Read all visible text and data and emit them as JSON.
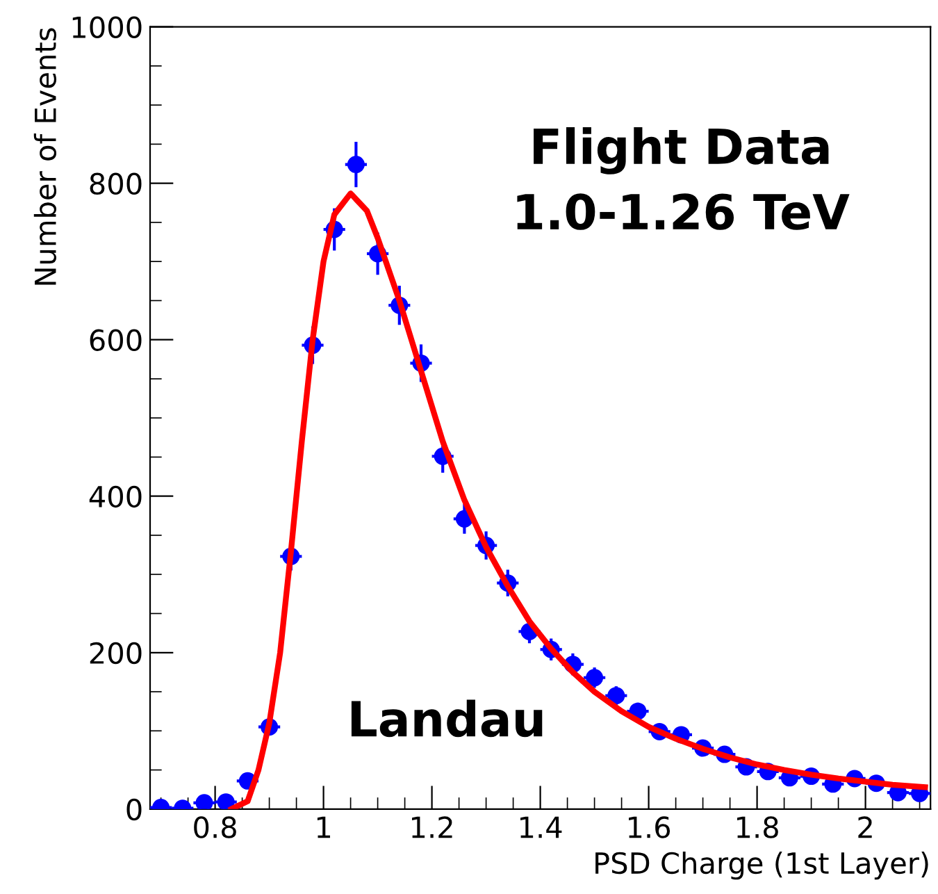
{
  "chart_data": {
    "type": "scatter",
    "xlabel": "PSD Charge (1st Layer)",
    "ylabel": "Number of Events",
    "xlim": [
      0.68,
      2.12
    ],
    "ylim": [
      0,
      1000
    ],
    "xticks": [
      0.8,
      1,
      1.2,
      1.4,
      1.6,
      1.8,
      2
    ],
    "yticks": [
      0,
      200,
      400,
      600,
      800,
      1000
    ],
    "grid": false,
    "legend": false,
    "marker": "circle",
    "annotations": [
      "Flight Data\n1.0-1.26 TeV",
      "Landau"
    ],
    "series": [
      {
        "color": "#0000ff",
        "x": [
          0.7,
          0.74,
          0.78,
          0.82,
          0.86,
          0.9,
          0.94,
          0.98,
          1.02,
          1.06,
          1.1,
          1.14,
          1.18,
          1.22,
          1.26,
          1.3,
          1.34,
          1.38,
          1.42,
          1.46,
          1.5,
          1.54,
          1.58,
          1.62,
          1.66,
          1.7,
          1.74,
          1.78,
          1.82,
          1.86,
          1.9,
          1.94,
          1.98,
          2.02,
          2.06,
          2.1
        ],
        "values": [
          2,
          1,
          8,
          9,
          36,
          105,
          323,
          593,
          741,
          824,
          710,
          644,
          570,
          451,
          371,
          337,
          289,
          227,
          204,
          185,
          168,
          145,
          125,
          99,
          95,
          78,
          70,
          54,
          48,
          40,
          42,
          32,
          39,
          33,
          21,
          20
        ],
        "errors": [
          1,
          1,
          3,
          3,
          6,
          10,
          18,
          24,
          27,
          29,
          27,
          25,
          24,
          21,
          19,
          18,
          17,
          15,
          14,
          14,
          13,
          12,
          11,
          10,
          10,
          9,
          8,
          7,
          7,
          6,
          6,
          6,
          6,
          6,
          5,
          4
        ],
        "xerrors": [
          0.02,
          0.02,
          0.02,
          0.02,
          0.02,
          0.02,
          0.02,
          0.02,
          0.02,
          0.02,
          0.02,
          0.02,
          0.02,
          0.02,
          0.02,
          0.02,
          0.02,
          0.02,
          0.02,
          0.02,
          0.02,
          0.02,
          0.02,
          0.02,
          0.02,
          0.02,
          0.02,
          0.02,
          0.02,
          0.02,
          0.02,
          0.02,
          0.02,
          0.02,
          0.02,
          0.02
        ]
      },
      {
        "type": "line",
        "color": "#ff0000",
        "line_style": "solid",
        "marker": "none",
        "x": [
          0.83,
          0.86,
          0.88,
          0.9,
          0.92,
          0.94,
          0.96,
          0.98,
          1.0,
          1.02,
          1.05,
          1.08,
          1.1,
          1.14,
          1.18,
          1.22,
          1.26,
          1.3,
          1.34,
          1.38,
          1.42,
          1.46,
          1.5,
          1.55,
          1.6,
          1.65,
          1.7,
          1.75,
          1.8,
          1.85,
          1.9,
          1.95,
          2.0,
          2.05,
          2.11
        ],
        "values": [
          0,
          10,
          50,
          110,
          200,
          330,
          470,
          600,
          700,
          760,
          787,
          765,
          730,
          650,
          560,
          470,
          395,
          335,
          285,
          240,
          205,
          175,
          150,
          125,
          105,
          90,
          77,
          66,
          57,
          50,
          44,
          39,
          35,
          31,
          28
        ]
      }
    ]
  }
}
